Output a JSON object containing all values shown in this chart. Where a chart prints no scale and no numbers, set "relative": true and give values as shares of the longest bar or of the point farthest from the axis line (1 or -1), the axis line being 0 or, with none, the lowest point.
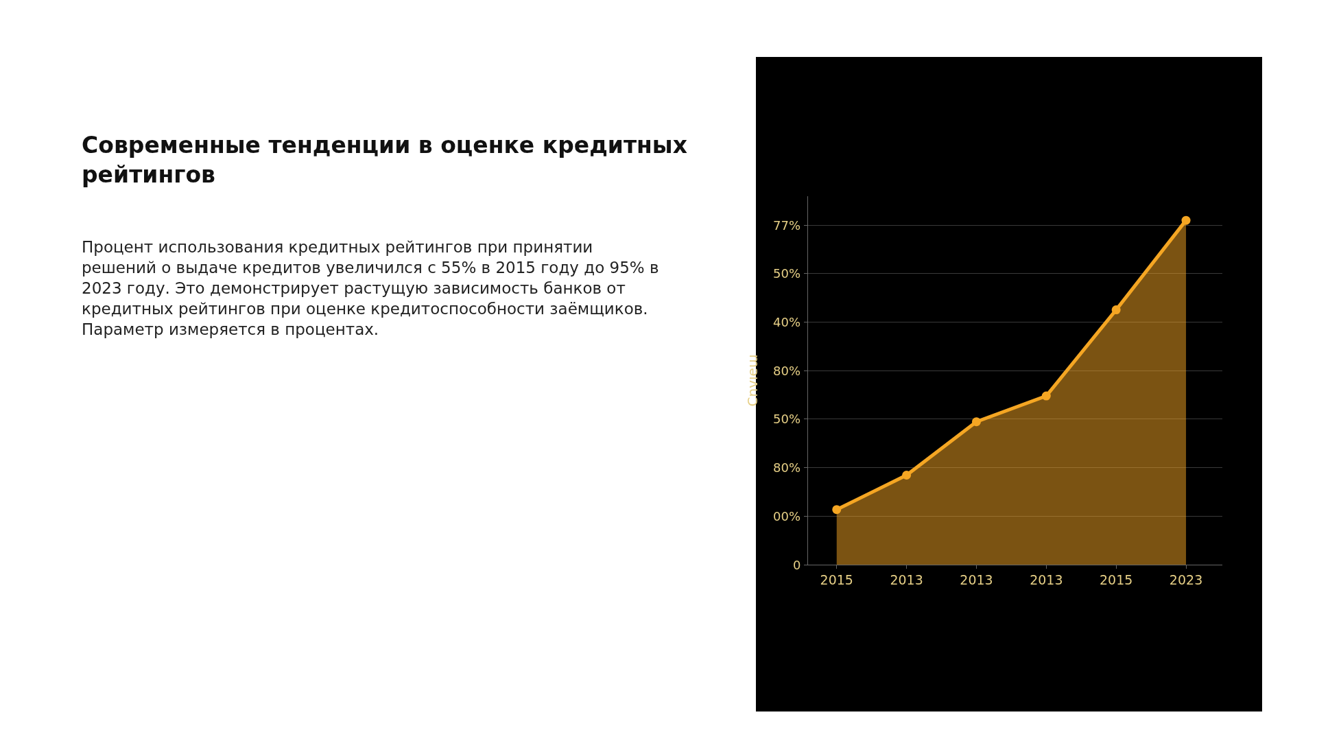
{
  "chart_data": {
    "type": "area",
    "title": "Современные тенденции в оценке кредитных\nрейтингов",
    "subtitle": "Процент использования кредитных рейтингов при принятии\nрешений о выдаче кредитов увеличился с 55% в 2015 году до 95% в\n2023 году. Это демонстрирует растущую зависимость банков от\nкредитных рейтингов при оценке кредитоспособности заёмщиков.\nПараметр измеряется в процентах.",
    "ylabel": "Cnvıeɯ",
    "relative": true,
    "categories": [
      "2015",
      "2013",
      "2013",
      "2013",
      "2015",
      "2023"
    ],
    "series": [
      {
        "color": "#f5a623",
        "values": [
          0.16,
          0.26,
          0.415,
          0.49,
          0.74,
          1
        ]
      }
    ],
    "annotations": [
      "0",
      "00%",
      "80%",
      "50%",
      "80%",
      "40%",
      "50%",
      "77%"
    ],
    "marker": "circle",
    "grid": "y"
  }
}
